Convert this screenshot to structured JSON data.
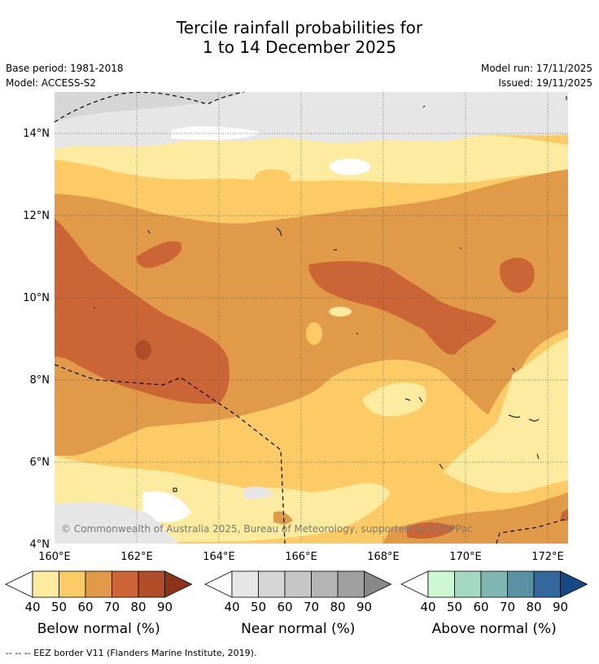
{
  "title": {
    "line1": "Tercile rainfall probabilities for",
    "line2": "1 to 14 December 2025"
  },
  "meta": {
    "base_period": "Base period: 1981-2018",
    "model": "Model: ACCESS-S2",
    "model_run": "Model run: 17/11/2025",
    "issued": "Issued: 19/11/2025"
  },
  "map": {
    "lat_labels": [
      "14°N",
      "12°N",
      "10°N",
      "8°N",
      "6°N",
      "4°N"
    ],
    "lon_labels": [
      "160°E",
      "162°E",
      "164°E",
      "166°E",
      "168°E",
      "170°E",
      "172°E"
    ],
    "lat_range": [
      4,
      15
    ],
    "lon_range": [
      160,
      172.5
    ],
    "copyright": "© Commonwealth of Australia 2025, Bureau of Meteorology, supported by COSPPac"
  },
  "legends": [
    {
      "label": "Below normal (%)",
      "ticks": [
        "40",
        "50",
        "60",
        "70",
        "80",
        "90"
      ],
      "colors": [
        "#fdeba0",
        "#fccb66",
        "#e09a48",
        "#cc6535",
        "#b04c28",
        "#8e3519"
      ]
    },
    {
      "label": "Near normal (%)",
      "ticks": [
        "40",
        "50",
        "60",
        "70",
        "80",
        "90"
      ],
      "colors": [
        "#e6e6e6",
        "#d6d6d6",
        "#c6c6c6",
        "#b4b4b4",
        "#a0a0a0",
        "#888888"
      ]
    },
    {
      "label": "Above normal (%)",
      "ticks": [
        "40",
        "50",
        "60",
        "70",
        "80",
        "90"
      ],
      "colors": [
        "#ccf9cf",
        "#a3d9c2",
        "#7eb7b1",
        "#5a92a3",
        "#34679c",
        "#154983"
      ]
    }
  ],
  "footnote": "--  --  -- EEZ border V11 (Flanders Marine Institute, 2019)."
}
